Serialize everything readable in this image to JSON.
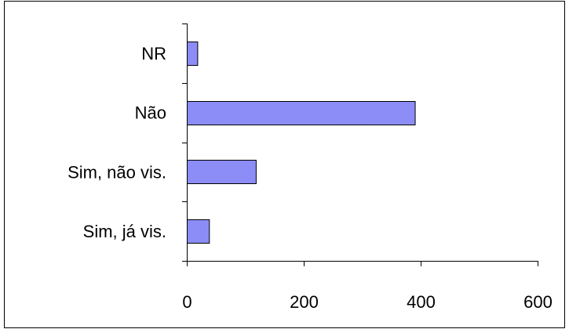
{
  "chart_data": {
    "type": "bar",
    "orientation": "horizontal",
    "categories": [
      "NR",
      "Não",
      "Sim, não vis.",
      "Sim, já vis."
    ],
    "values": [
      18,
      390,
      118,
      38
    ],
    "title": "",
    "xlabel": "",
    "ylabel": "",
    "xlim": [
      0,
      600
    ],
    "xticks": [
      "0",
      "200",
      "400",
      "600"
    ],
    "grid": false,
    "legend": "none",
    "bar_color": "#9999ff"
  }
}
